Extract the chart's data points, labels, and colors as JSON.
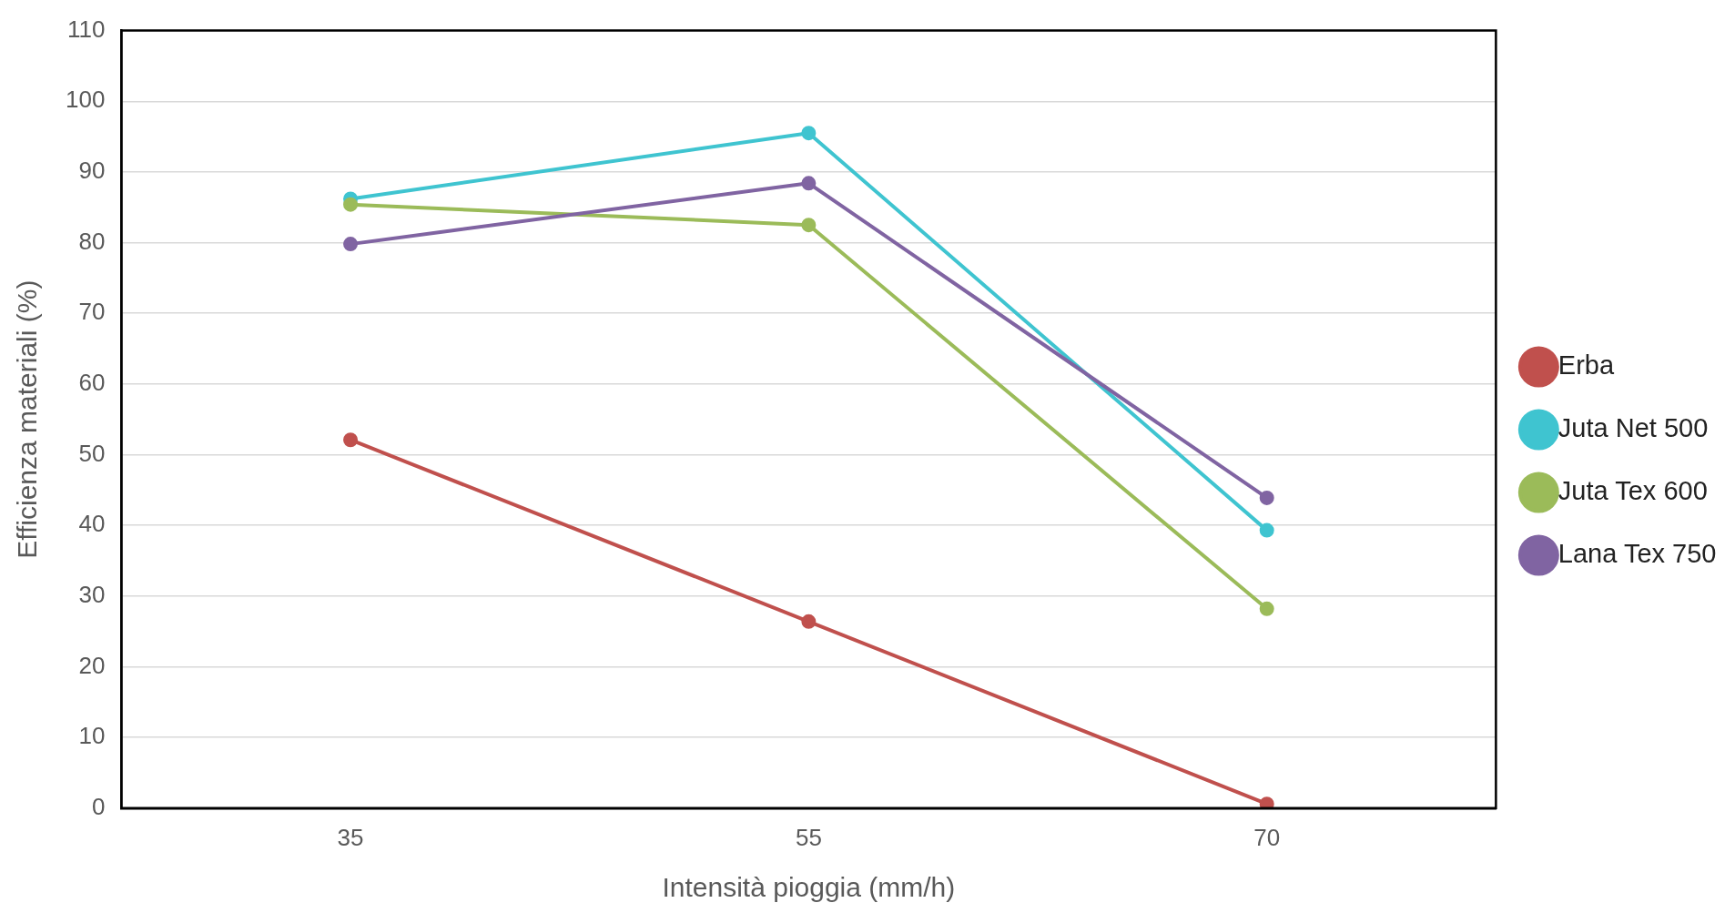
{
  "chart_data": {
    "type": "line",
    "xlabel": "Intensità pioggia (mm/h)",
    "ylabel": "Efficienza materiali (%)",
    "categories": [
      "35",
      "55",
      "70"
    ],
    "series": [
      {
        "name": "Erba",
        "color": "#c0504d",
        "values": [
          52.1,
          26.4,
          0.6
        ]
      },
      {
        "name": "Juta Net 500",
        "color": "#3fc4d0",
        "values": [
          86.2,
          95.5,
          39.3
        ]
      },
      {
        "name": "Juta Tex 600",
        "color": "#9bbb59",
        "values": [
          85.4,
          82.5,
          28.2
        ]
      },
      {
        "name": "Lana Tex 750",
        "color": "#8064a2",
        "values": [
          79.8,
          88.4,
          43.9
        ]
      }
    ],
    "ylim": [
      0,
      110
    ],
    "yticks": [
      0,
      10,
      20,
      30,
      40,
      50,
      60,
      70,
      80,
      90,
      100,
      110
    ],
    "grid": "y",
    "legend": "right",
    "marker": "circle",
    "line_style": "solid"
  }
}
